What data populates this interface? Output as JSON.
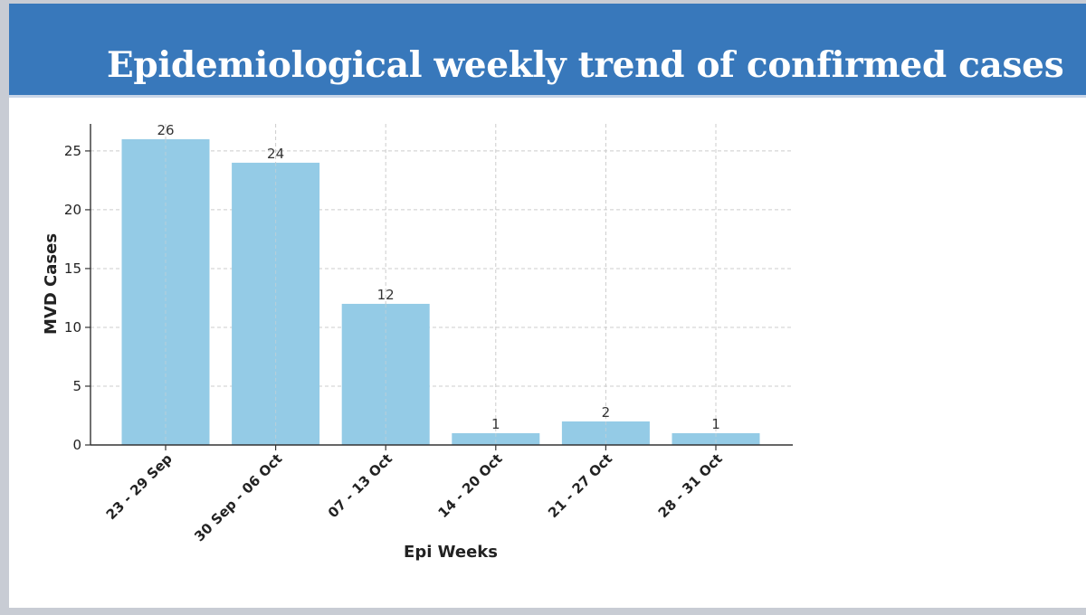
{
  "slide": {
    "title": "Epidemiological weekly trend of confirmed cases"
  },
  "colors": {
    "banner": "#3878bb",
    "bar": "#94cbe6",
    "grid": "#cccccc",
    "axis": "#333333"
  },
  "chart_data": {
    "type": "bar",
    "categories": [
      "23 - 29 Sep",
      "30 Sep - 06 Oct",
      "07 - 13 Oct",
      "14 - 20 Oct",
      "21 - 27 Oct",
      "28 - 31 Oct"
    ],
    "values": [
      26,
      24,
      12,
      1,
      2,
      1
    ],
    "data_labels": [
      "26",
      "24",
      "12",
      "1",
      "2",
      "1"
    ],
    "yticks": [
      0,
      5,
      10,
      15,
      20,
      25
    ],
    "ylim": [
      0,
      27.3
    ],
    "xlabel": "Epi Weeks",
    "ylabel": "MVD Cases",
    "grid": true,
    "legend": "none"
  }
}
